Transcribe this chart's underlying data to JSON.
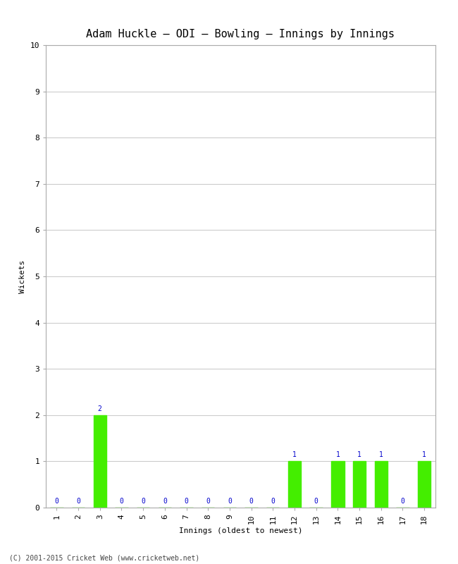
{
  "title": "Adam Huckle – ODI – Bowling – Innings by Innings",
  "xlabel": "Innings (oldest to newest)",
  "ylabel": "Wickets",
  "innings": [
    1,
    2,
    3,
    4,
    5,
    6,
    7,
    8,
    9,
    10,
    11,
    12,
    13,
    14,
    15,
    16,
    17,
    18
  ],
  "wickets": [
    0,
    0,
    2,
    0,
    0,
    0,
    0,
    0,
    0,
    0,
    0,
    1,
    0,
    1,
    1,
    1,
    0,
    1
  ],
  "bar_color": "#44ee00",
  "label_color": "#0000cc",
  "ylim": [
    0,
    10
  ],
  "yticks": [
    0,
    1,
    2,
    3,
    4,
    5,
    6,
    7,
    8,
    9,
    10
  ],
  "bg_color": "#ffffff",
  "plot_bg_color": "#ffffff",
  "grid_color": "#cccccc",
  "title_fontsize": 11,
  "axis_label_fontsize": 8,
  "tick_fontsize": 8,
  "bar_label_fontsize": 7,
  "footer": "(C) 2001-2015 Cricket Web (www.cricketweb.net)",
  "footer_fontsize": 7
}
